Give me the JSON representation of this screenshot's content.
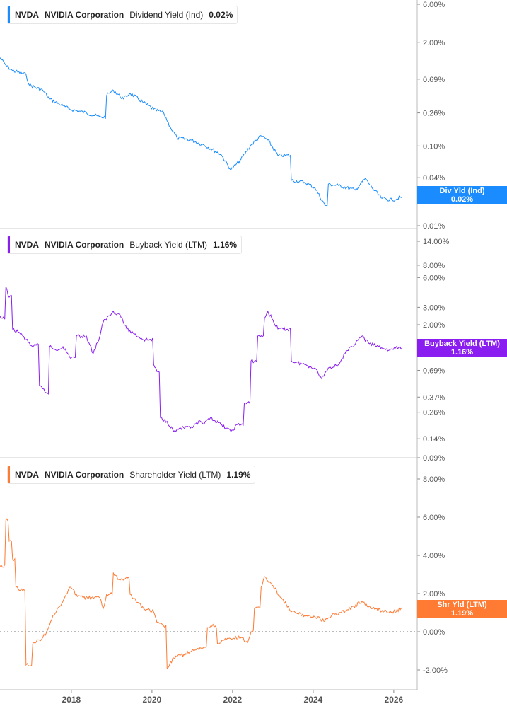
{
  "chart_data": [
    {
      "type": "line",
      "legend": {
        "ticker": "NVDA",
        "company": "NVIDIA Corporation",
        "metric": "Dividend Yield (Ind)",
        "value": "0.02%"
      },
      "tag": {
        "label": "Div Yld (Ind)",
        "value": "0.02%"
      },
      "color": "#1a8cff",
      "scale": "log",
      "ylim": [
        0.01,
        6.0
      ],
      "yticks": [
        "6.00%",
        "2.00%",
        "0.69%",
        "0.26%",
        "0.10%",
        "0.04%",
        "0.01%"
      ],
      "ytick_values": [
        6.0,
        2.0,
        0.69,
        0.26,
        0.1,
        0.04,
        0.01
      ],
      "x": [
        "2016-03",
        "2016-05",
        "2016-07",
        "2016-11",
        "2016-12",
        "2017-04",
        "2017-06",
        "2017-10",
        "2017-12",
        "2018-05",
        "2018-09",
        "2018-11",
        "2019-01",
        "2019-04",
        "2019-06",
        "2019-10",
        "2020-01",
        "2020-04",
        "2020-06",
        "2020-08",
        "2020-12",
        "2021-04",
        "2021-09",
        "2021-12",
        "2022-03",
        "2022-06",
        "2022-09",
        "2022-11",
        "2023-02",
        "2023-06",
        "2023-10",
        "2024-01",
        "2024-04",
        "2024-05",
        "2024-08",
        "2025-01",
        "2025-04",
        "2025-06",
        "2025-09",
        "2025-12",
        "2026-03"
      ],
      "y": [
        1.32,
        1.03,
        0.88,
        0.79,
        0.58,
        0.5,
        0.39,
        0.32,
        0.29,
        0.26,
        0.23,
        0.43,
        0.5,
        0.39,
        0.46,
        0.35,
        0.29,
        0.26,
        0.171,
        0.126,
        0.119,
        0.103,
        0.079,
        0.05,
        0.068,
        0.103,
        0.134,
        0.119,
        0.076,
        0.037,
        0.035,
        0.03,
        0.018,
        0.033,
        0.032,
        0.028,
        0.039,
        0.03,
        0.022,
        0.021,
        0.023
      ]
    },
    {
      "type": "line",
      "legend": {
        "ticker": "NVDA",
        "company": "NVIDIA Corporation",
        "metric": "Buyback Yield (LTM)",
        "value": "1.16%"
      },
      "tag": {
        "label": "Buyback Yield (LTM)",
        "value": "1.16%"
      },
      "color": "#8a1df0",
      "scale": "log",
      "ylim": [
        0.09,
        14.0
      ],
      "yticks": [
        "14.00%",
        "8.00%",
        "6.00%",
        "3.00%",
        "2.00%",
        "1.00%",
        "0.69%",
        "0.37%",
        "0.26%",
        "0.14%",
        "0.09%"
      ],
      "ytick_values": [
        14,
        8,
        6,
        3,
        2,
        1,
        0.69,
        0.37,
        0.26,
        0.14,
        0.09
      ],
      "x": [
        "2016-03",
        "2016-05",
        "2016-06",
        "2016-07",
        "2016-09",
        "2016-11",
        "2017-01",
        "2017-02",
        "2017-03",
        "2017-04",
        "2017-05",
        "2017-06",
        "2017-08",
        "2017-10",
        "2017-12",
        "2018-02",
        "2018-05",
        "2018-07",
        "2018-09",
        "2018-10",
        "2019-01",
        "2019-03",
        "2019-05",
        "2019-10",
        "2020-01",
        "2020-02",
        "2020-03",
        "2020-05",
        "2020-07",
        "2020-09",
        "2020-12",
        "2021-03",
        "2021-04",
        "2021-06",
        "2021-09",
        "2021-12",
        "2022-02",
        "2022-04",
        "2022-06",
        "2022-08",
        "2022-10",
        "2022-11",
        "2023-02",
        "2023-06",
        "2023-10",
        "2024-01",
        "2024-03",
        "2024-05",
        "2024-08",
        "2024-10",
        "2025-03",
        "2025-05",
        "2025-08",
        "2025-11",
        "2026-01",
        "2026-03"
      ],
      "y": [
        2.32,
        4.87,
        3.8,
        1.81,
        1.67,
        1.41,
        1.2,
        1.24,
        0.48,
        0.45,
        0.41,
        1.2,
        1.1,
        1.2,
        0.94,
        1.53,
        1.53,
        1.02,
        1.53,
        2.13,
        2.73,
        2.52,
        1.81,
        1.41,
        0.79,
        0.67,
        0.23,
        0.21,
        0.166,
        0.18,
        0.18,
        0.21,
        0.195,
        0.23,
        0.195,
        0.166,
        0.195,
        0.32,
        0.86,
        1.53,
        2.32,
        2.73,
        1.81,
        0.86,
        0.79,
        0.73,
        0.57,
        0.73,
        0.79,
        1.02,
        1.53,
        1.3,
        1.2,
        1.1,
        1.16,
        1.16
      ]
    },
    {
      "type": "line",
      "legend": {
        "ticker": "NVDA",
        "company": "NVIDIA Corporation",
        "metric": "Shareholder Yield (LTM)",
        "value": "1.19%"
      },
      "tag": {
        "label": "Shr Yld (LTM)",
        "value": "1.19%"
      },
      "color": "#ff7a33",
      "scale": "linear",
      "ylim": [
        -2.5,
        8.5
      ],
      "yticks": [
        "8.00%",
        "6.00%",
        "4.00%",
        "2.00%",
        "0.00%",
        "-2.00%"
      ],
      "ytick_values": [
        8,
        6,
        4,
        2,
        0,
        -2
      ],
      "zero_line": true,
      "x": [
        "2016-03",
        "2016-05",
        "2016-06",
        "2016-07",
        "2016-08",
        "2016-10",
        "2016-11",
        "2017-01",
        "2017-03",
        "2017-05",
        "2017-07",
        "2017-08",
        "2017-10",
        "2017-12",
        "2018-02",
        "2018-04",
        "2018-09",
        "2018-10",
        "2018-11",
        "2019-01",
        "2019-03",
        "2019-05",
        "2019-06",
        "2019-10",
        "2020-01",
        "2020-02",
        "2020-04",
        "2020-05",
        "2020-07",
        "2020-10",
        "2021-01",
        "2021-04",
        "2021-05",
        "2021-06",
        "2021-08",
        "2021-10",
        "2022-03",
        "2022-05",
        "2022-06",
        "2022-07",
        "2022-09",
        "2022-10",
        "2022-12",
        "2023-03",
        "2023-06",
        "2023-10",
        "2024-01",
        "2024-04",
        "2024-06",
        "2024-11",
        "2025-03",
        "2025-05",
        "2025-09",
        "2025-12",
        "2026-03"
      ],
      "y": [
        3.44,
        5.85,
        4.74,
        3.81,
        2.33,
        2.15,
        -1.74,
        -0.63,
        -0.44,
        -0.07,
        0.85,
        1.04,
        1.59,
        2.33,
        1.96,
        1.78,
        1.78,
        1.22,
        1.96,
        3.07,
        2.7,
        2.89,
        1.96,
        1.22,
        1.04,
        0.48,
        0.3,
        -1.93,
        -1.37,
        -1.19,
        -1.0,
        -0.81,
        0.22,
        0.3,
        -0.63,
        -0.44,
        -0.3,
        -0.56,
        0.0,
        1.22,
        2.33,
        2.89,
        2.52,
        1.78,
        1.04,
        0.85,
        0.78,
        0.56,
        0.85,
        1.15,
        1.59,
        1.3,
        1.11,
        1.04,
        1.19
      ]
    }
  ],
  "xaxis": {
    "ticks": [
      "2018",
      "2020",
      "2022",
      "2024",
      "2026"
    ]
  }
}
